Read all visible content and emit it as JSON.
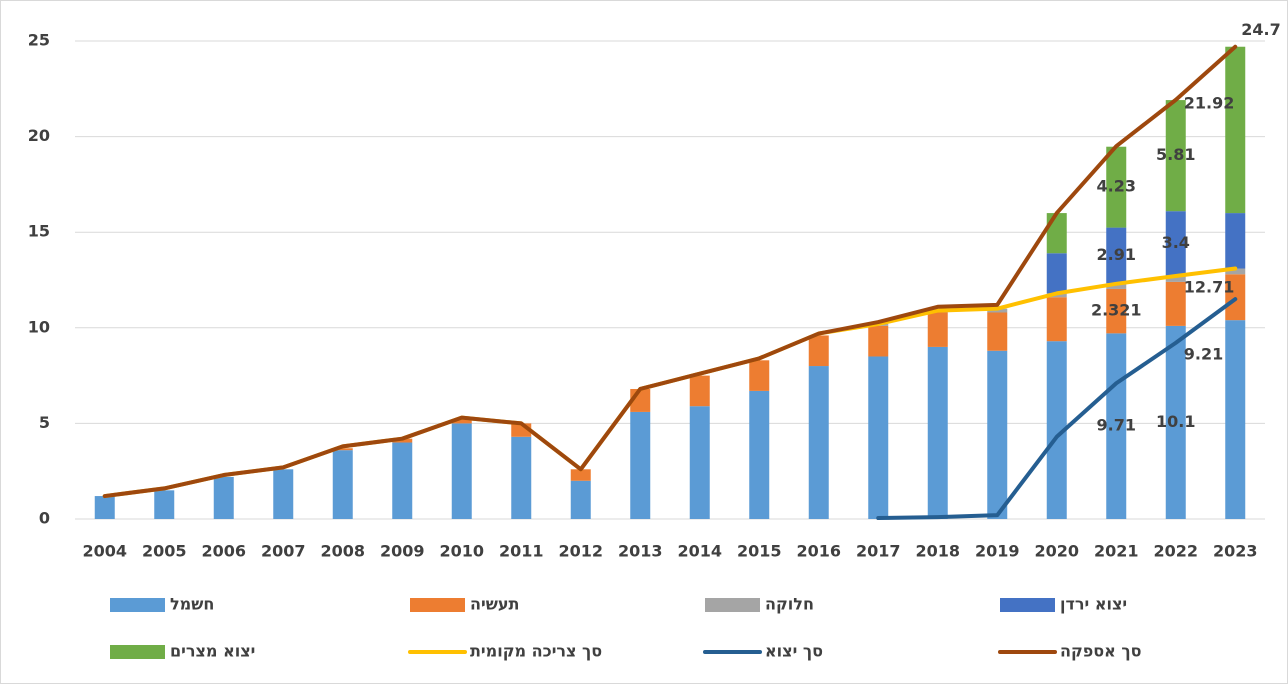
{
  "chart_data": {
    "type": "bar",
    "stacked": true,
    "categories": [
      "2004",
      "2005",
      "2006",
      "2007",
      "2008",
      "2009",
      "2010",
      "2011",
      "2012",
      "2013",
      "2014",
      "2015",
      "2016",
      "2017",
      "2018",
      "2019",
      "2020",
      "2021",
      "2022",
      "2023"
    ],
    "ylim": [
      0,
      25
    ],
    "yticks": [
      0,
      5,
      10,
      15,
      20,
      25
    ],
    "grid": true,
    "legend": "bottom",
    "series": [
      {
        "name": "חשמל",
        "type": "bar",
        "color": "#5b9bd5",
        "values": [
          1.2,
          1.5,
          2.2,
          2.6,
          3.6,
          4.0,
          5.0,
          4.3,
          2.0,
          5.6,
          5.9,
          6.7,
          8.0,
          8.5,
          9.0,
          8.8,
          9.3,
          9.71,
          10.1,
          10.4
        ],
        "value_labels": [
          null,
          null,
          null,
          null,
          null,
          null,
          null,
          null,
          null,
          null,
          null,
          null,
          null,
          null,
          null,
          null,
          null,
          "9.71",
          "10.1",
          null
        ]
      },
      {
        "name": "תעשיה",
        "type": "bar",
        "color": "#ed7d31",
        "values": [
          0,
          0,
          0,
          0,
          0.1,
          0.2,
          0.2,
          0.7,
          0.6,
          1.2,
          1.6,
          1.6,
          1.6,
          1.6,
          1.8,
          2.0,
          2.3,
          2.321,
          2.3,
          2.4
        ],
        "value_labels": [
          null,
          null,
          null,
          null,
          null,
          null,
          null,
          null,
          null,
          null,
          null,
          null,
          null,
          null,
          null,
          null,
          null,
          "2.321",
          null,
          null
        ]
      },
      {
        "name": "חלוקה",
        "type": "bar",
        "color": "#a5a5a5",
        "values": [
          0,
          0,
          0,
          0,
          0,
          0,
          0,
          0,
          0,
          0,
          0,
          0,
          0,
          0.1,
          0.1,
          0.2,
          0.2,
          0.3,
          0.3,
          0.3
        ]
      },
      {
        "name": "יצוא ירדן",
        "type": "bar",
        "color": "#4472c4",
        "values": [
          0,
          0,
          0,
          0,
          0,
          0,
          0,
          0,
          0,
          0,
          0,
          0,
          0,
          0,
          0,
          0,
          2.1,
          2.91,
          3.4,
          2.9
        ],
        "value_labels": [
          null,
          null,
          null,
          null,
          null,
          null,
          null,
          null,
          null,
          null,
          null,
          null,
          null,
          null,
          null,
          null,
          null,
          "2.91",
          "3.4",
          null
        ]
      },
      {
        "name": "יצוא מצרים",
        "type": "bar",
        "color": "#70ad47",
        "values": [
          0,
          0,
          0,
          0,
          0,
          0,
          0,
          0,
          0,
          0,
          0,
          0,
          0,
          0,
          0,
          0,
          2.1,
          4.23,
          5.81,
          8.7
        ],
        "value_labels": [
          null,
          null,
          null,
          null,
          null,
          null,
          null,
          null,
          null,
          null,
          null,
          null,
          null,
          null,
          null,
          null,
          null,
          "4.23",
          "5.81",
          null
        ]
      },
      {
        "name": "סך צריכה מקומית",
        "type": "line",
        "color": "#ffc000",
        "values": [
          1.2,
          1.6,
          2.3,
          2.7,
          3.8,
          4.2,
          5.3,
          5.0,
          2.6,
          6.8,
          7.6,
          8.4,
          9.7,
          10.2,
          10.9,
          11.0,
          11.8,
          12.3,
          12.71,
          13.1
        ],
        "value_labels": [
          null,
          null,
          null,
          null,
          null,
          null,
          null,
          null,
          null,
          null,
          null,
          null,
          null,
          null,
          null,
          null,
          null,
          null,
          "12.71",
          null
        ]
      },
      {
        "name": "סך יצוא",
        "type": "line",
        "color": "#255e91",
        "values": [
          null,
          null,
          null,
          null,
          null,
          null,
          null,
          null,
          null,
          null,
          null,
          null,
          null,
          0.05,
          0.1,
          0.2,
          4.3,
          7.1,
          9.21,
          11.5
        ],
        "value_labels": [
          null,
          null,
          null,
          null,
          null,
          null,
          null,
          null,
          null,
          null,
          null,
          null,
          null,
          null,
          null,
          null,
          null,
          null,
          "9.21",
          null
        ]
      },
      {
        "name": "סך אספקה",
        "type": "line",
        "color": "#9e480e",
        "values": [
          1.2,
          1.6,
          2.3,
          2.7,
          3.8,
          4.2,
          5.3,
          5.0,
          2.6,
          6.8,
          7.6,
          8.4,
          9.7,
          10.3,
          11.1,
          11.2,
          16.0,
          19.5,
          21.92,
          24.7
        ],
        "value_labels": [
          null,
          null,
          null,
          null,
          null,
          null,
          null,
          null,
          null,
          null,
          null,
          null,
          null,
          null,
          null,
          null,
          null,
          null,
          "21.92",
          "24.7"
        ]
      }
    ]
  }
}
